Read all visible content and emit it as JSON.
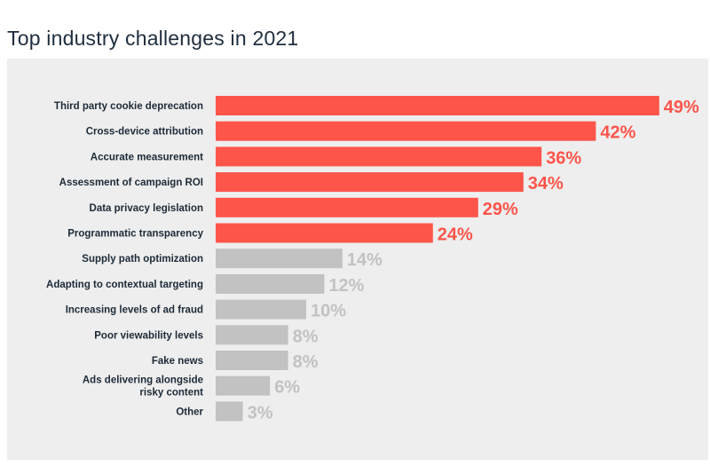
{
  "title": "Top industry challenges in 2021",
  "colors": {
    "highlight": "#fe554a",
    "muted": "#c2c2c2",
    "label": "#1c2a38",
    "panel": "#eeeeee"
  },
  "chart_data": {
    "type": "bar",
    "orientation": "horizontal",
    "title": "Top industry challenges in 2021",
    "xlabel": "",
    "ylabel": "",
    "grid": false,
    "xlim": [
      0,
      49
    ],
    "value_suffix": "%",
    "categories": [
      "Third party cookie deprecation",
      "Cross-device attribution",
      "Accurate measurement",
      "Assessment of campaign ROI",
      "Data privacy legislation",
      "Programmatic transparency",
      "Supply path optimization",
      "Adapting to contextual targeting",
      "Increasing levels of ad fraud",
      "Poor viewability levels",
      "Fake news",
      "Ads delivering alongside risky content",
      "Other"
    ],
    "values": [
      49,
      42,
      36,
      34,
      29,
      24,
      14,
      12,
      10,
      8,
      8,
      6,
      3
    ],
    "highlighted": [
      true,
      true,
      true,
      true,
      true,
      true,
      false,
      false,
      false,
      false,
      false,
      false,
      false
    ]
  }
}
